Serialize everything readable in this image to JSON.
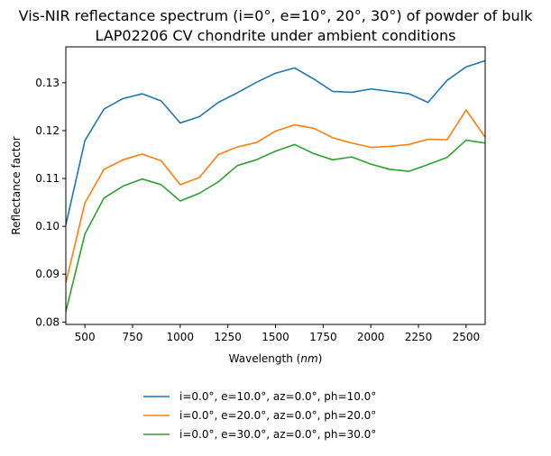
{
  "chart_data": {
    "type": "line",
    "title_lines": [
      "Vis-NIR reflectance spectrum (i=0°, e=10°, 20°, 30°) of powder of bulk",
      "LAP02206 CV chondrite under ambient conditions"
    ],
    "xlabel": "Wavelength (",
    "xlabel_unit": "nm",
    "xlabel_close": ")",
    "ylabel": "Reflectance factor",
    "xlim": [
      400,
      2600
    ],
    "ylim": [
      0.0795,
      0.1375
    ],
    "xticks": [
      500,
      750,
      1000,
      1250,
      1500,
      1750,
      2000,
      2250,
      2500
    ],
    "yticks": [
      0.08,
      0.09,
      0.1,
      0.11,
      0.12,
      0.13
    ],
    "grid": false,
    "legend_position": "below-center",
    "x": [
      400,
      500,
      600,
      700,
      800,
      900,
      1000,
      1100,
      1200,
      1300,
      1400,
      1500,
      1600,
      1700,
      1800,
      1900,
      2000,
      2100,
      2200,
      2300,
      2400,
      2500,
      2600
    ],
    "series": [
      {
        "name": "i=0.0°, e=10.0°, az=0.0°, ph=10.0°",
        "color": "#1f77b4",
        "values": [
          0.1003,
          0.1179,
          0.1245,
          0.1267,
          0.1277,
          0.1262,
          0.1216,
          0.1229,
          0.1259,
          0.1279,
          0.1301,
          0.132,
          0.1331,
          0.1308,
          0.1282,
          0.128,
          0.1287,
          0.1282,
          0.1277,
          0.1259,
          0.1305,
          0.1333,
          0.1346
        ]
      },
      {
        "name": "i=0.0°, e=20.0°, az=0.0°, ph=20.0°",
        "color": "#ff7f0e",
        "values": [
          0.0882,
          0.1049,
          0.1119,
          0.1139,
          0.1151,
          0.1137,
          0.1087,
          0.1102,
          0.115,
          0.1166,
          0.1175,
          0.1199,
          0.1212,
          0.1205,
          0.1185,
          0.1174,
          0.1165,
          0.1167,
          0.1171,
          0.1182,
          0.1181,
          0.1243,
          0.1186
        ]
      },
      {
        "name": "i=0.0°, e=30.0°, az=0.0°, ph=30.0°",
        "color": "#2ca02c",
        "values": [
          0.0822,
          0.0984,
          0.1059,
          0.1084,
          0.1099,
          0.1087,
          0.1053,
          0.1069,
          0.1093,
          0.1127,
          0.1139,
          0.1157,
          0.1171,
          0.1152,
          0.1139,
          0.1145,
          0.113,
          0.1119,
          0.1115,
          0.1129,
          0.1144,
          0.118,
          0.1174
        ]
      }
    ]
  }
}
